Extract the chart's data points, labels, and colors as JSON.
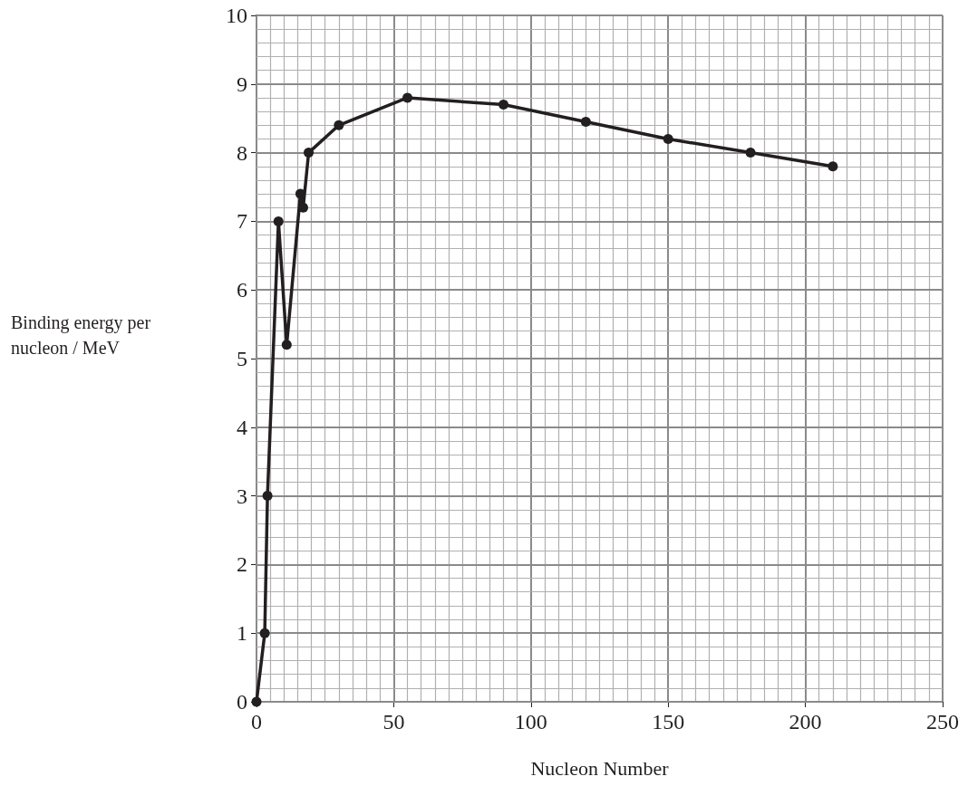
{
  "chart_data": {
    "type": "line",
    "xlabel": "Nucleon Number",
    "ylabel": "Binding energy per nucleon / MeV",
    "x": [
      0,
      3,
      4,
      8,
      11,
      16,
      17,
      19,
      30,
      55,
      90,
      120,
      150,
      180,
      210
    ],
    "series": [
      {
        "color": "#231f20",
        "values": [
          0,
          1,
          3,
          7,
          5.2,
          7.4,
          7.2,
          8,
          8.4,
          8.8,
          8.7,
          8.45,
          8.2,
          8.0,
          7.8
        ]
      }
    ],
    "xlim": [
      0,
      250
    ],
    "xticks": [
      0,
      50,
      100,
      150,
      200,
      250
    ],
    "ylim": [
      0,
      10
    ],
    "yticks": [
      0,
      1,
      2,
      3,
      4,
      5,
      6,
      7,
      8,
      9,
      10
    ],
    "grid": true,
    "marker": "circle",
    "line_style": "solid"
  }
}
